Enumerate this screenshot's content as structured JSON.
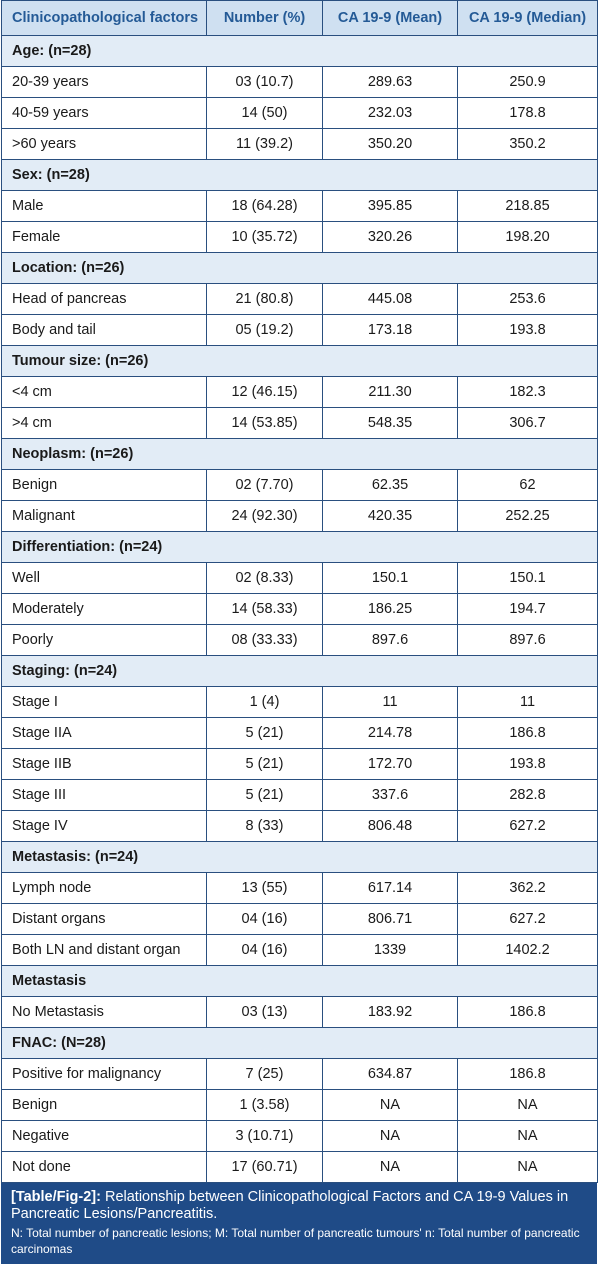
{
  "headers": [
    "Clinicopathological factors",
    "Number (%)",
    "CA 19-9 (Mean)",
    "CA 19-9 (Median)"
  ],
  "sections": [
    {
      "title": "Age: (n=28)",
      "rows": [
        [
          "20-39 years",
          "03 (10.7)",
          "289.63",
          "250.9"
        ],
        [
          "40-59 years",
          "14 (50)",
          "232.03",
          "178.8"
        ],
        [
          ">60 years",
          "11 (39.2)",
          "350.20",
          "350.2"
        ]
      ]
    },
    {
      "title": "Sex: (n=28)",
      "rows": [
        [
          "Male",
          "18 (64.28)",
          "395.85",
          "218.85"
        ],
        [
          "Female",
          "10 (35.72)",
          "320.26",
          "198.20"
        ]
      ]
    },
    {
      "title": "Location: (n=26)",
      "rows": [
        [
          "Head of pancreas",
          "21 (80.8)",
          "445.08",
          "253.6"
        ],
        [
          "Body and tail",
          "05 (19.2)",
          "173.18",
          "193.8"
        ]
      ]
    },
    {
      "title": "Tumour size: (n=26)",
      "rows": [
        [
          "<4 cm",
          "12 (46.15)",
          "211.30",
          "182.3"
        ],
        [
          ">4 cm",
          "14 (53.85)",
          "548.35",
          "306.7"
        ]
      ]
    },
    {
      "title": "Neoplasm: (n=26)",
      "rows": [
        [
          "Benign",
          "02 (7.70)",
          "62.35",
          "62"
        ],
        [
          "Malignant",
          "24 (92.30)",
          "420.35",
          "252.25"
        ]
      ]
    },
    {
      "title": "Differentiation: (n=24)",
      "rows": [
        [
          "Well",
          "02 (8.33)",
          "150.1",
          "150.1"
        ],
        [
          "Moderately",
          "14 (58.33)",
          "186.25",
          "194.7"
        ],
        [
          "Poorly",
          "08 (33.33)",
          "897.6",
          "897.6"
        ]
      ]
    },
    {
      "title": "Staging: (n=24)",
      "rows": [
        [
          "Stage I",
          "1 (4)",
          "11",
          "11"
        ],
        [
          "Stage IIA",
          "5 (21)",
          "214.78",
          "186.8"
        ],
        [
          "Stage IIB",
          "5 (21)",
          "172.70",
          "193.8"
        ],
        [
          "Stage III",
          "5 (21)",
          "337.6",
          "282.8"
        ],
        [
          "Stage IV",
          "8 (33)",
          "806.48",
          "627.2"
        ]
      ]
    },
    {
      "title": "Metastasis: (n=24)",
      "rows": [
        [
          "Lymph node",
          "13 (55)",
          "617.14",
          "362.2"
        ],
        [
          "Distant organs",
          "04 (16)",
          "806.71",
          "627.2"
        ],
        [
          "Both LN and distant organ",
          "04 (16)",
          "1339",
          "1402.2"
        ]
      ]
    },
    {
      "title": "Metastasis",
      "rows": [
        [
          "No Metastasis",
          "03 (13)",
          "183.92",
          "186.8"
        ]
      ]
    },
    {
      "title": "FNAC: (N=28)",
      "rows": [
        [
          "Positive for malignancy",
          "7 (25)",
          "634.87",
          "186.8"
        ],
        [
          "Benign",
          "1 (3.58)",
          "NA",
          "NA"
        ],
        [
          "Negative",
          "3 (10.71)",
          "NA",
          "NA"
        ],
        [
          "Not done",
          "17 (60.71)",
          "NA",
          "NA"
        ]
      ]
    }
  ],
  "caption": {
    "label": "[Table/Fig-2]:",
    "text": " Relationship between Clinicopathological Factors and CA 19-9 Values in Pancreatic Lesions/Pancreatitis.",
    "notes": "N: Total number of pancreatic lesions; M: Total number of pancreatic tumours' n: Total number of pancreatic carcinomas"
  },
  "colors": {
    "header_bg": "#cfe0f1",
    "header_text": "#245a96",
    "section_bg": "#e2ecf6",
    "border": "#2a4f7f",
    "caption_bg": "#1f4b87"
  }
}
